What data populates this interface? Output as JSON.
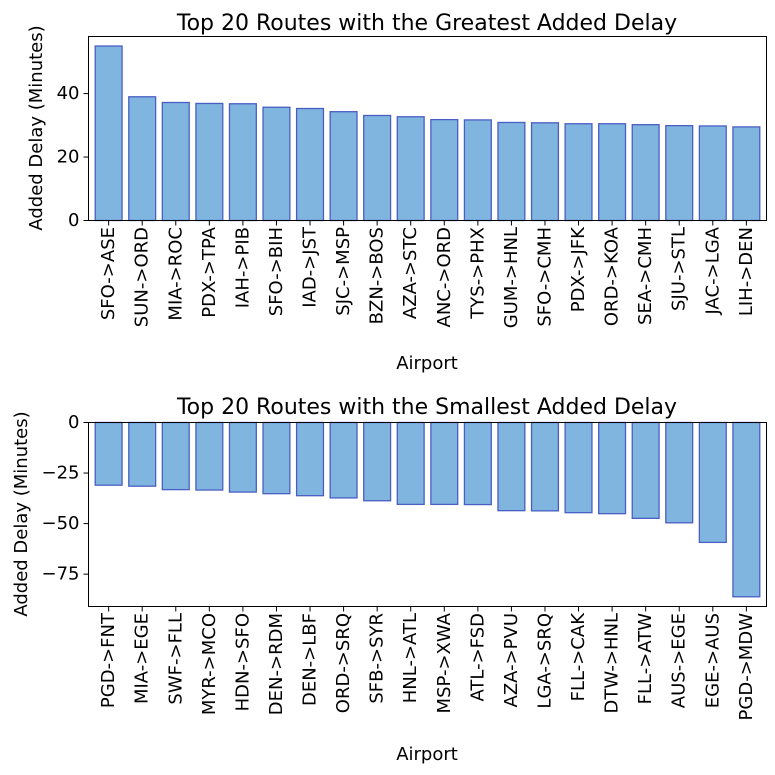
{
  "chart_data": [
    {
      "type": "bar",
      "title": "Top 20 Routes with the Greatest Added Delay",
      "xlabel": "Airport",
      "ylabel": "Added Delay (Minutes)",
      "ylim": [
        0,
        58
      ],
      "yticks": [
        0,
        20,
        40
      ],
      "grid": false,
      "categories": [
        "SFO->ASE",
        "SUN->ORD",
        "MIA->ROC",
        "PDX->TPA",
        "IAH->PIB",
        "SFO->BIH",
        "IAD->JST",
        "SJC->MSP",
        "BZN->BOS",
        "AZA->STC",
        "ANC->ORD",
        "TYS->PHX",
        "GUM->HNL",
        "SFO->CMH",
        "PDX->JFK",
        "ORD->KOA",
        "SEA->CMH",
        "SJU->STL",
        "JAC->LGA",
        "LIH->DEN"
      ],
      "values": [
        55.0,
        39.0,
        37.2,
        36.9,
        36.8,
        35.7,
        35.3,
        34.3,
        33.1,
        32.7,
        31.8,
        31.7,
        30.9,
        30.8,
        30.5,
        30.5,
        30.2,
        29.9,
        29.8,
        29.5
      ],
      "bar_color": "#7fb5de",
      "edge_color": "#4a5ec4"
    },
    {
      "type": "bar",
      "title": "Top 20 Routes with the Smallest Added Delay",
      "xlabel": "Airport",
      "ylabel": "Added Delay (Minutes)",
      "ylim": [
        -91,
        0
      ],
      "yticks": [
        0,
        -25,
        -50,
        -75
      ],
      "grid": false,
      "categories": [
        "PGD->FNT",
        "MIA->EGE",
        "SWF->FLL",
        "MYR->MCO",
        "HDN->SFO",
        "DEN->RDM",
        "DEN->LBF",
        "ORD->SRQ",
        "SFB->SYR",
        "HNL->ATL",
        "MSP->XWA",
        "ATL->FSD",
        "AZA->PVU",
        "LGA->SRQ",
        "FLL->CAK",
        "DTW->HNL",
        "FLL->ATW",
        "AUS->EGE",
        "EGE->AUS",
        "PGD->MDW"
      ],
      "values": [
        -31.0,
        -31.5,
        -33.2,
        -33.4,
        -34.4,
        -35.2,
        -36.2,
        -37.3,
        -38.7,
        -40.5,
        -40.5,
        -40.6,
        -43.6,
        -43.7,
        -44.6,
        -45.1,
        -47.4,
        -49.6,
        -59.3,
        -86.2
      ],
      "bar_color": "#7fb5de",
      "edge_color": "#4a5ec4"
    }
  ]
}
